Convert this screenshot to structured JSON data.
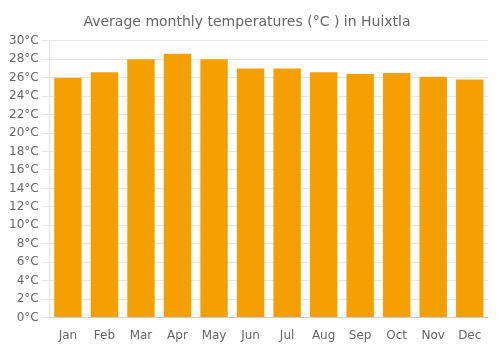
{
  "chart_data": {
    "type": "bar",
    "title": "Average monthly temperatures (°C ) in Huixtla",
    "categories": [
      "Jan",
      "Feb",
      "Mar",
      "Apr",
      "May",
      "Jun",
      "Jul",
      "Aug",
      "Sep",
      "Oct",
      "Nov",
      "Dec"
    ],
    "values": [
      26.0,
      26.6,
      28.0,
      28.6,
      28.0,
      27.0,
      27.0,
      26.6,
      26.4,
      26.5,
      26.1,
      25.8
    ],
    "color": "#F5A000",
    "ylim": [
      0,
      30
    ],
    "yticks": [
      {
        "value": 0,
        "label": "0°C"
      },
      {
        "value": 2,
        "label": "2°C"
      },
      {
        "value": 4,
        "label": "4°C"
      },
      {
        "value": 6,
        "label": "6°C"
      },
      {
        "value": 8,
        "label": "8°C"
      },
      {
        "value": 10,
        "label": "10°C"
      },
      {
        "value": 12,
        "label": "12°C"
      },
      {
        "value": 14,
        "label": "14°C"
      },
      {
        "value": 16,
        "label": "16°C"
      },
      {
        "value": 18,
        "label": "18°C"
      },
      {
        "value": 20,
        "label": "20°C"
      },
      {
        "value": 22,
        "label": "22°C"
      },
      {
        "value": 24,
        "label": "24°C"
      },
      {
        "value": 26,
        "label": "26°C"
      },
      {
        "value": 28,
        "label": "28°C"
      },
      {
        "value": 30,
        "label": "30°C"
      }
    ],
    "grid": true
  }
}
